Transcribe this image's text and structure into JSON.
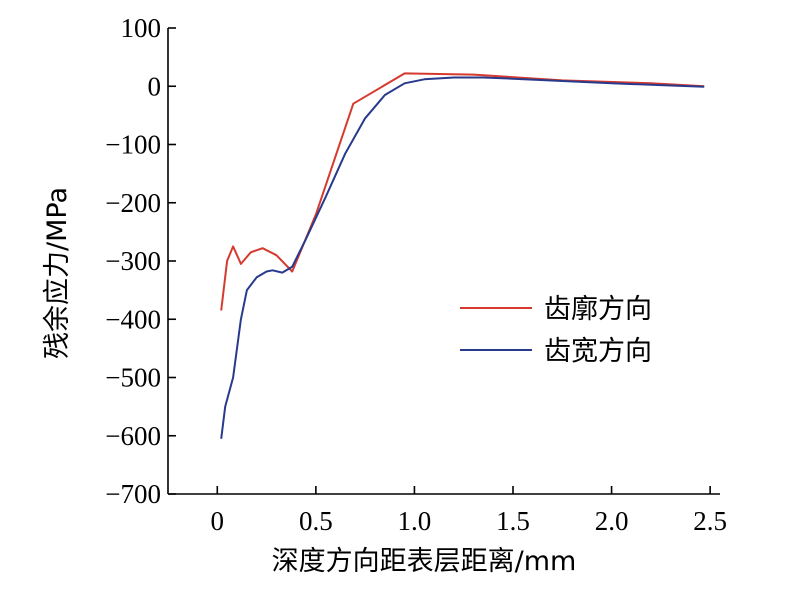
{
  "chart_data": {
    "type": "line",
    "title": "",
    "xlabel": "深度方向距表层距离/mm",
    "ylabel": "残余应力/MPa",
    "xlim": [
      -0.25,
      2.55
    ],
    "ylim": [
      -700,
      100
    ],
    "x_ticks": [
      0,
      0.5,
      1.0,
      1.5,
      2.0,
      2.5
    ],
    "x_tick_labels": [
      "0",
      "0.5",
      "1.0",
      "1.5",
      "2.0",
      "2.5"
    ],
    "y_ticks": [
      100,
      0,
      -100,
      -200,
      -300,
      -400,
      -500,
      -600,
      -700
    ],
    "y_tick_labels": [
      "100",
      "0",
      "−100",
      "−200",
      "−300",
      "−400",
      "−500",
      "−600",
      "−700"
    ],
    "grid": false,
    "legend_position": "right-middle",
    "series": [
      {
        "name": "齿廓方向",
        "color": "#d63a2f",
        "x": [
          0.02,
          0.05,
          0.08,
          0.12,
          0.17,
          0.23,
          0.3,
          0.38,
          0.5,
          0.69,
          0.95,
          1.3,
          1.75,
          2.2,
          2.47
        ],
        "y": [
          -385,
          -300,
          -275,
          -305,
          -285,
          -278,
          -290,
          -318,
          -220,
          -30,
          22,
          20,
          10,
          5,
          0
        ]
      },
      {
        "name": "齿宽方向",
        "color": "#283a8c",
        "x": [
          0.02,
          0.04,
          0.08,
          0.12,
          0.15,
          0.2,
          0.25,
          0.28,
          0.33,
          0.38,
          0.45,
          0.55,
          0.65,
          0.75,
          0.85,
          0.95,
          1.05,
          1.2,
          1.35,
          1.5,
          1.75,
          2.0,
          2.25,
          2.47
        ],
        "y": [
          -605,
          -550,
          -500,
          -400,
          -350,
          -328,
          -318,
          -316,
          -320,
          -310,
          -262,
          -190,
          -115,
          -55,
          -15,
          5,
          12,
          15,
          15,
          13,
          9,
          5,
          2,
          -1
        ]
      }
    ]
  }
}
